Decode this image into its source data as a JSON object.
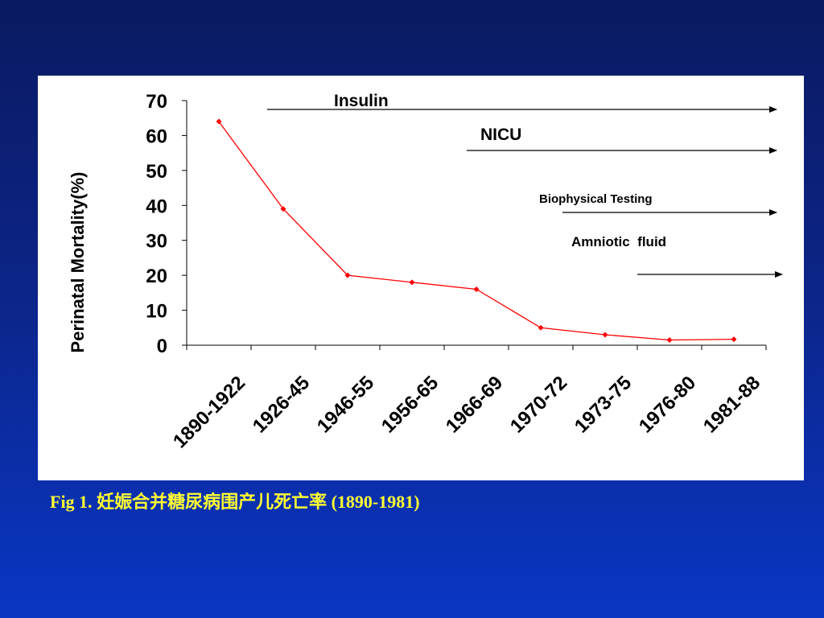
{
  "chart_data": {
    "type": "line",
    "categories": [
      "1890-1922",
      "1926-45",
      "1946-55",
      "1956-65",
      "1966-69",
      "1970-72",
      "1973-75",
      "1976-80",
      "1981-88"
    ],
    "series": [
      {
        "values": [
          64,
          39,
          20,
          18,
          16,
          5,
          3,
          1.5,
          1.7
        ]
      }
    ],
    "ylabel": "Perinatal Mortality(%)",
    "yticks": [
      "0",
      "10",
      "20",
      "30",
      "40",
      "50",
      "60",
      "70"
    ],
    "ylim": [
      0,
      70
    ],
    "annotations": [
      "Insulin",
      "NICU",
      "Biophysical Testing",
      "Amniotic  fluid"
    ],
    "line_color": "#ff0000",
    "grid": false
  },
  "caption": {
    "prefix": "Fig 1.",
    "text": "妊娠合并糖尿病围产儿死亡率",
    "range": "(1890-1981)"
  },
  "colors": {
    "caption": "#ffff33",
    "panel": "#ffffff"
  }
}
